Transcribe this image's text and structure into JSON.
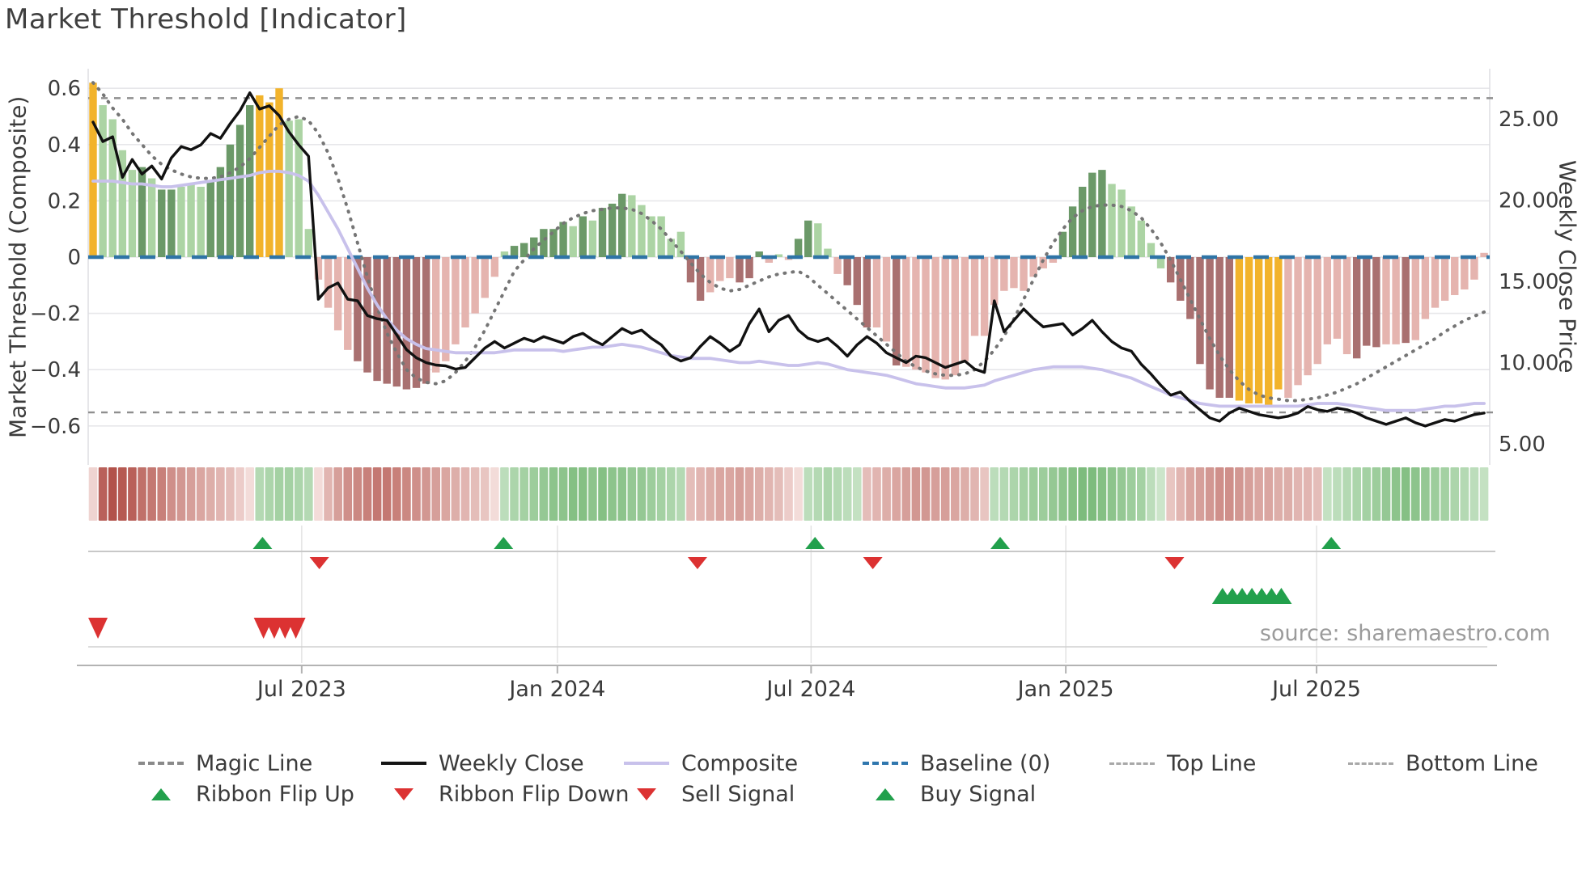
{
  "title": "Market Threshold [Indicator]",
  "source": "source: sharemaestro.com",
  "axes": {
    "left": {
      "title": "Market Threshold (Composite)",
      "ticks": [
        0.6,
        0.4,
        0.2,
        0,
        -0.2,
        -0.4,
        -0.6
      ]
    },
    "right": {
      "title": "Weekly Close Price",
      "ticks": [
        25,
        20,
        15,
        10,
        5
      ]
    },
    "x": {
      "tick_labels": [
        "Jul 2023",
        "Jan 2024",
        "Jul 2024",
        "Jan 2025",
        "Jul 2025"
      ],
      "tick_weeks": [
        22.3,
        48.4,
        74.3,
        100.3,
        125.9
      ]
    }
  },
  "colors": {
    "bar_yellow": "#F2B32B",
    "bar_dark_green": "#6B9968",
    "bar_light_green": "#ACD4A4",
    "bar_dark_red": "#A97070",
    "bar_light_red": "#E5B4AF",
    "weekly_close_line": "#111111",
    "composite_line": "#C8C1EB",
    "magic_line": "#757575",
    "baseline": "#2E74A6",
    "top_bottom_line": "#8f8f8f",
    "signal_green": "#22A04C",
    "signal_red": "#DC3232",
    "grid": "#e7e7ea",
    "panel_line": "#c8c8c8"
  },
  "legend": {
    "row1": [
      {
        "label": "Magic Line",
        "swatch": "magic-dashed-gray"
      },
      {
        "label": "Weekly Close",
        "swatch": "solid-black"
      },
      {
        "label": "Composite",
        "swatch": "solid-lavender"
      },
      {
        "label": "Baseline (0)",
        "swatch": "dashed-blue"
      },
      {
        "label": "Top Line",
        "swatch": "dashed-light-gray"
      },
      {
        "label": "Bottom Line",
        "swatch": "dashed-light-gray"
      }
    ],
    "row2": [
      {
        "label": "Ribbon Flip Up",
        "swatch": "triangle-up-green"
      },
      {
        "label": "Ribbon Flip Down",
        "swatch": "triangle-down-red"
      },
      {
        "label": "Sell Signal",
        "swatch": "triangle-down-red"
      },
      {
        "label": "Buy Signal",
        "swatch": "triangle-up-green"
      }
    ]
  },
  "chart_data": {
    "type": "bar",
    "subtype": "weekly composite indicator bars with overlay lines, ribbon strip and trade signals",
    "weeks": 143,
    "title": "Market Threshold [Indicator]",
    "left_axis_label": "Market Threshold (Composite)",
    "right_axis_label": "Weekly Close Price",
    "left_ylim": [
      -0.67,
      0.67
    ],
    "right_ylim": [
      4.0,
      26.5
    ],
    "top_line": 0.565,
    "bottom_line": -0.552,
    "baseline": 0,
    "grid": "horizontal",
    "legend_position": "bottom",
    "bars": {
      "name": "Market Threshold (Composite) weekly bars",
      "palette_key": {
        "y": "yellow",
        "G": "dark-green",
        "g": "light-green",
        "R": "dark-red",
        "r": "light-red"
      },
      "palette": "yggggGgGGgggGGGGGyyygggrrrrRRRRRRRRrrrrrrrgGGGGGGgGgGGGggggggRRrrrRRGrgrGGggrRRRrrRrrrrrrrrrrrrrrrrGGGGGggggggRRRRRRRyyyyyrrrrrrrRRRrrRrrrrrrrrg",
      "values": [
        0.62,
        0.54,
        0.49,
        0.38,
        0.31,
        0.32,
        0.28,
        0.24,
        0.24,
        0.25,
        0.26,
        0.25,
        0.27,
        0.32,
        0.4,
        0.47,
        0.54,
        0.575,
        0.55,
        0.6,
        0.485,
        0.49,
        0.1,
        -0.08,
        -0.18,
        -0.26,
        -0.33,
        -0.37,
        -0.41,
        -0.44,
        -0.45,
        -0.46,
        -0.47,
        -0.465,
        -0.45,
        -0.41,
        -0.37,
        -0.31,
        -0.25,
        -0.2,
        -0.145,
        -0.07,
        0.02,
        0.04,
        0.05,
        0.07,
        0.1,
        0.1,
        0.125,
        0.11,
        0.145,
        0.13,
        0.175,
        0.19,
        0.225,
        0.22,
        0.185,
        0.145,
        0.145,
        0.065,
        0.09,
        -0.09,
        -0.155,
        -0.125,
        -0.085,
        -0.075,
        -0.09,
        -0.075,
        0.02,
        -0.02,
        0.01,
        -0.01,
        0.065,
        0.13,
        0.12,
        0.03,
        -0.06,
        -0.1,
        -0.17,
        -0.25,
        -0.25,
        -0.3,
        -0.385,
        -0.39,
        -0.4,
        -0.41,
        -0.43,
        -0.435,
        -0.42,
        -0.37,
        -0.28,
        -0.28,
        -0.17,
        -0.12,
        -0.11,
        -0.12,
        -0.07,
        -0.04,
        -0.02,
        0.09,
        0.18,
        0.25,
        0.3,
        0.31,
        0.26,
        0.24,
        0.18,
        0.13,
        0.05,
        -0.04,
        -0.09,
        -0.155,
        -0.22,
        -0.38,
        -0.47,
        -0.5,
        -0.5,
        -0.51,
        -0.52,
        -0.52,
        -0.53,
        -0.47,
        -0.5,
        -0.455,
        -0.42,
        -0.38,
        -0.31,
        -0.29,
        -0.345,
        -0.36,
        -0.315,
        -0.32,
        -0.31,
        -0.31,
        -0.305,
        -0.295,
        -0.22,
        -0.18,
        -0.155,
        -0.135,
        -0.115,
        -0.08,
        0.015
      ]
    },
    "series": [
      {
        "name": "Weekly Close",
        "axis": "right",
        "style": "solid-black",
        "values": [
          24.8,
          23.6,
          23.9,
          21.4,
          22.5,
          21.6,
          22.1,
          21.3,
          22.6,
          23.3,
          23.1,
          23.4,
          24.1,
          23.8,
          24.7,
          25.5,
          26.6,
          25.6,
          25.8,
          25.2,
          24.2,
          23.4,
          22.7,
          13.9,
          14.6,
          14.9,
          13.9,
          13.8,
          12.9,
          12.7,
          12.6,
          11.7,
          10.8,
          10.3,
          10.0,
          9.85,
          9.8,
          9.6,
          9.7,
          10.3,
          10.9,
          11.3,
          10.9,
          11.2,
          11.5,
          11.3,
          11.6,
          11.4,
          11.2,
          11.6,
          11.8,
          11.4,
          11.1,
          11.6,
          12.1,
          11.8,
          12.0,
          11.5,
          11.1,
          10.4,
          10.1,
          10.3,
          11.0,
          11.6,
          11.2,
          10.7,
          11.1,
          12.4,
          13.3,
          11.9,
          12.6,
          12.9,
          12.0,
          11.5,
          11.3,
          11.5,
          11.0,
          10.4,
          11.1,
          11.6,
          11.2,
          10.6,
          10.3,
          10.0,
          10.4,
          10.3,
          10.0,
          9.7,
          9.9,
          10.1,
          9.6,
          9.4,
          13.8,
          11.9,
          12.6,
          13.3,
          12.7,
          12.2,
          12.3,
          12.4,
          11.7,
          12.1,
          12.6,
          11.9,
          11.3,
          10.9,
          10.7,
          9.9,
          9.3,
          8.6,
          8.0,
          8.2,
          7.6,
          7.1,
          6.6,
          6.4,
          6.9,
          7.2,
          7.0,
          6.8,
          6.7,
          6.6,
          6.7,
          6.9,
          7.3,
          7.1,
          7.0,
          7.2,
          7.1,
          6.9,
          6.6,
          6.4,
          6.2,
          6.4,
          6.6,
          6.3,
          6.1,
          6.3,
          6.5,
          6.4,
          6.6,
          6.8,
          6.9
        ]
      },
      {
        "name": "Composite",
        "axis": "left",
        "style": "solid-lavender",
        "values": [
          0.27,
          0.27,
          0.27,
          0.265,
          0.26,
          0.26,
          0.255,
          0.25,
          0.25,
          0.255,
          0.26,
          0.265,
          0.27,
          0.275,
          0.28,
          0.285,
          0.29,
          0.3,
          0.305,
          0.305,
          0.3,
          0.29,
          0.27,
          0.22,
          0.16,
          0.1,
          0.03,
          -0.04,
          -0.11,
          -0.17,
          -0.22,
          -0.26,
          -0.29,
          -0.31,
          -0.325,
          -0.33,
          -0.335,
          -0.34,
          -0.34,
          -0.34,
          -0.34,
          -0.34,
          -0.335,
          -0.33,
          -0.33,
          -0.33,
          -0.33,
          -0.33,
          -0.335,
          -0.33,
          -0.325,
          -0.32,
          -0.32,
          -0.315,
          -0.31,
          -0.315,
          -0.32,
          -0.33,
          -0.34,
          -0.35,
          -0.355,
          -0.36,
          -0.36,
          -0.36,
          -0.365,
          -0.37,
          -0.375,
          -0.375,
          -0.37,
          -0.375,
          -0.38,
          -0.385,
          -0.385,
          -0.38,
          -0.375,
          -0.38,
          -0.39,
          -0.4,
          -0.405,
          -0.41,
          -0.415,
          -0.42,
          -0.43,
          -0.44,
          -0.45,
          -0.455,
          -0.46,
          -0.465,
          -0.465,
          -0.465,
          -0.46,
          -0.455,
          -0.44,
          -0.43,
          -0.42,
          -0.41,
          -0.4,
          -0.395,
          -0.39,
          -0.39,
          -0.39,
          -0.39,
          -0.395,
          -0.4,
          -0.41,
          -0.42,
          -0.43,
          -0.445,
          -0.46,
          -0.475,
          -0.49,
          -0.5,
          -0.51,
          -0.52,
          -0.525,
          -0.53,
          -0.53,
          -0.53,
          -0.53,
          -0.53,
          -0.53,
          -0.53,
          -0.53,
          -0.53,
          -0.525,
          -0.52,
          -0.52,
          -0.52,
          -0.525,
          -0.53,
          -0.535,
          -0.54,
          -0.545,
          -0.545,
          -0.545,
          -0.545,
          -0.54,
          -0.535,
          -0.53,
          -0.53,
          -0.525,
          -0.52,
          -0.52
        ]
      },
      {
        "name": "Magic Line",
        "axis": "left",
        "style": "dotted-gray",
        "values": [
          0.62,
          0.58,
          0.53,
          0.49,
          0.44,
          0.4,
          0.36,
          0.33,
          0.31,
          0.295,
          0.285,
          0.28,
          0.28,
          0.285,
          0.3,
          0.32,
          0.35,
          0.39,
          0.43,
          0.47,
          0.49,
          0.5,
          0.485,
          0.44,
          0.37,
          0.28,
          0.17,
          0.05,
          -0.07,
          -0.18,
          -0.27,
          -0.34,
          -0.4,
          -0.43,
          -0.445,
          -0.45,
          -0.44,
          -0.41,
          -0.37,
          -0.32,
          -0.26,
          -0.19,
          -0.12,
          -0.05,
          -0.01,
          0.03,
          0.06,
          0.09,
          0.12,
          0.14,
          0.155,
          0.165,
          0.17,
          0.175,
          0.175,
          0.17,
          0.155,
          0.13,
          0.1,
          0.06,
          0.02,
          -0.02,
          -0.06,
          -0.09,
          -0.11,
          -0.12,
          -0.115,
          -0.1,
          -0.085,
          -0.07,
          -0.06,
          -0.055,
          -0.05,
          -0.07,
          -0.1,
          -0.13,
          -0.16,
          -0.19,
          -0.22,
          -0.25,
          -0.28,
          -0.31,
          -0.34,
          -0.37,
          -0.39,
          -0.405,
          -0.415,
          -0.42,
          -0.42,
          -0.415,
          -0.4,
          -0.37,
          -0.33,
          -0.28,
          -0.22,
          -0.15,
          -0.08,
          -0.01,
          0.05,
          0.1,
          0.14,
          0.165,
          0.18,
          0.185,
          0.185,
          0.18,
          0.165,
          0.14,
          0.1,
          0.05,
          -0.01,
          -0.08,
          -0.15,
          -0.22,
          -0.29,
          -0.35,
          -0.4,
          -0.44,
          -0.47,
          -0.49,
          -0.5,
          -0.505,
          -0.51,
          -0.51,
          -0.505,
          -0.5,
          -0.49,
          -0.48,
          -0.465,
          -0.45,
          -0.43,
          -0.41,
          -0.39,
          -0.37,
          -0.35,
          -0.33,
          -0.31,
          -0.29,
          -0.265,
          -0.245,
          -0.225,
          -0.21,
          -0.195
        ]
      }
    ],
    "ribbon": {
      "name": "trend ribbon (red-green intensity strip, -1 red to +1 green)",
      "values": [
        -0.15,
        -0.9,
        -1.0,
        -0.95,
        -0.9,
        -0.8,
        -0.75,
        -0.7,
        -0.6,
        -0.55,
        -0.5,
        -0.45,
        -0.4,
        -0.35,
        -0.3,
        -0.2,
        -0.1,
        0.35,
        0.4,
        0.45,
        0.45,
        0.4,
        0.35,
        -0.1,
        -0.35,
        -0.5,
        -0.6,
        -0.65,
        -0.7,
        -0.75,
        -0.75,
        -0.7,
        -0.65,
        -0.6,
        -0.55,
        -0.5,
        -0.45,
        -0.4,
        -0.35,
        -0.3,
        -0.25,
        -0.1,
        0.3,
        0.4,
        0.45,
        0.5,
        0.55,
        0.6,
        0.6,
        0.65,
        0.65,
        0.6,
        0.65,
        0.6,
        0.6,
        0.55,
        0.55,
        0.5,
        0.45,
        0.4,
        0.35,
        -0.3,
        -0.35,
        -0.4,
        -0.45,
        -0.45,
        -0.5,
        -0.45,
        -0.4,
        -0.35,
        -0.3,
        -0.2,
        -0.1,
        0.3,
        0.35,
        0.4,
        0.35,
        0.3,
        0.25,
        -0.3,
        -0.35,
        -0.4,
        -0.45,
        -0.5,
        -0.55,
        -0.55,
        -0.5,
        -0.5,
        -0.45,
        -0.4,
        -0.35,
        -0.25,
        0.3,
        0.35,
        0.4,
        0.45,
        0.5,
        0.5,
        0.55,
        0.6,
        0.65,
        0.7,
        0.7,
        0.65,
        0.6,
        0.55,
        0.5,
        0.45,
        0.3,
        0.2,
        -0.25,
        -0.35,
        -0.45,
        -0.5,
        -0.55,
        -0.6,
        -0.6,
        -0.55,
        -0.5,
        -0.45,
        -0.45,
        -0.4,
        -0.4,
        -0.35,
        -0.35,
        -0.3,
        0.25,
        0.3,
        0.35,
        0.4,
        0.45,
        0.5,
        0.55,
        0.6,
        0.65,
        0.6,
        0.55,
        0.5,
        0.45,
        0.4,
        0.35,
        0.3,
        0.25
      ]
    },
    "signals": {
      "ribbon_flip_up_weeks": [
        18.3,
        42.9,
        74.7,
        93.6,
        127.4
      ],
      "ribbon_flip_down_weeks": [
        24.1,
        62.7,
        80.6,
        111.4
      ],
      "sell_signal_weeks": [
        1.5,
        18.4,
        19.5,
        20.6,
        21.7
      ],
      "buy_signal_weeks": [
        116.3,
        117.3,
        118.3,
        119.3,
        120.3,
        121.3,
        122.3
      ]
    }
  }
}
